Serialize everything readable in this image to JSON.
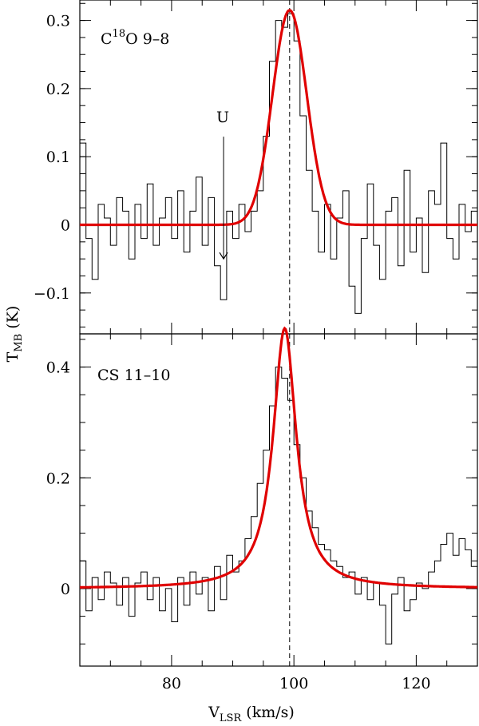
{
  "figure": {
    "xlabel_main": "V",
    "xlabel_sub": "LSR",
    "xlabel_unit": " (km/s)",
    "ylabel_main": "T",
    "ylabel_sub": "MB",
    "ylabel_unit": " (K)"
  },
  "colors": {
    "fit": "#e00000",
    "spectrum": "#000000"
  },
  "chart_data": [
    {
      "type": "line",
      "title": "",
      "label_main": "C",
      "label_sup": "18",
      "label_rest": "O 9–8",
      "annotation": {
        "text": "U",
        "x": 88.5,
        "y": 0.12,
        "arrow_to_y": -0.05
      },
      "xlim": [
        65,
        130
      ],
      "ylim": [
        -0.16,
        0.33
      ],
      "xticks_major": [
        80,
        100,
        120
      ],
      "xticks_minor": [
        70,
        75,
        85,
        90,
        95,
        105,
        110,
        115,
        125
      ],
      "yticks_major": [
        -0.1,
        0,
        0.1,
        0.2,
        0.3
      ],
      "ytick_labels": [
        "−0.1",
        "0",
        "0.1",
        "0.2",
        "0.3"
      ],
      "vline": 99.3,
      "series": [
        {
          "style": "histogram",
          "x": [
            65.5,
            66.5,
            67.5,
            68.5,
            69.5,
            70.5,
            71.5,
            72.5,
            73.5,
            74.5,
            75.5,
            76.5,
            77.5,
            78.5,
            79.5,
            80.5,
            81.5,
            82.5,
            83.5,
            84.5,
            85.5,
            86.5,
            87.5,
            88.5,
            89.5,
            90.5,
            91.5,
            92.5,
            93.5,
            94.5,
            95.5,
            96.5,
            97.5,
            98.5,
            99.5,
            100.5,
            101.5,
            102.5,
            103.5,
            104.5,
            105.5,
            106.5,
            107.5,
            108.5,
            109.5,
            110.5,
            111.5,
            112.5,
            113.5,
            114.5,
            115.5,
            116.5,
            117.5,
            118.5,
            119.5,
            120.5,
            121.5,
            122.5,
            123.5,
            124.5,
            125.5,
            126.5,
            127.5,
            128.5,
            129.5
          ],
          "y": [
            0.12,
            -0.02,
            -0.08,
            0.03,
            0.01,
            -0.03,
            0.04,
            0.02,
            -0.05,
            0.03,
            -0.02,
            0.06,
            -0.03,
            0.01,
            0.04,
            -0.02,
            0.05,
            -0.04,
            0.02,
            0.07,
            -0.03,
            0.04,
            -0.06,
            -0.11,
            0.02,
            -0.02,
            0.03,
            -0.01,
            0.02,
            0.05,
            0.13,
            0.24,
            0.3,
            0.29,
            0.31,
            0.27,
            0.16,
            0.08,
            0.02,
            -0.04,
            0.03,
            -0.05,
            0.01,
            0.05,
            -0.09,
            -0.13,
            -0.02,
            0.06,
            -0.03,
            -0.08,
            0.02,
            0.04,
            -0.06,
            0.08,
            -0.04,
            0.01,
            -0.07,
            0.05,
            0.03,
            0.12,
            -0.02,
            -0.05,
            0.03,
            -0.01,
            0.02
          ]
        },
        {
          "style": "fit",
          "model": "gaussian",
          "center": 99.3,
          "amplitude": 0.315,
          "fwhm": 6.6
        }
      ]
    },
    {
      "type": "line",
      "title": "",
      "label_main": "CS 11–10",
      "xlim": [
        65,
        130
      ],
      "ylim": [
        -0.14,
        0.46
      ],
      "xticks_major": [
        80,
        100,
        120
      ],
      "xticks_minor": [
        70,
        75,
        85,
        90,
        95,
        105,
        110,
        115,
        125
      ],
      "xtick_labels": [
        "80",
        "100",
        "120"
      ],
      "yticks_major": [
        0,
        0.2,
        0.4
      ],
      "ytick_labels": [
        "0",
        "0.2",
        "0.4"
      ],
      "vline": 99.3,
      "series": [
        {
          "style": "histogram",
          "x": [
            65.5,
            66.5,
            67.5,
            68.5,
            69.5,
            70.5,
            71.5,
            72.5,
            73.5,
            74.5,
            75.5,
            76.5,
            77.5,
            78.5,
            79.5,
            80.5,
            81.5,
            82.5,
            83.5,
            84.5,
            85.5,
            86.5,
            87.5,
            88.5,
            89.5,
            90.5,
            91.5,
            92.5,
            93.5,
            94.5,
            95.5,
            96.5,
            97.5,
            98.5,
            99.5,
            100.5,
            101.5,
            102.5,
            103.5,
            104.5,
            105.5,
            106.5,
            107.5,
            108.5,
            109.5,
            110.5,
            111.5,
            112.5,
            113.5,
            114.5,
            115.5,
            116.5,
            117.5,
            118.5,
            119.5,
            120.5,
            121.5,
            122.5,
            123.5,
            124.5,
            125.5,
            126.5,
            127.5,
            128.5,
            129.5
          ],
          "y": [
            0.05,
            -0.04,
            0.02,
            -0.02,
            0.03,
            0.01,
            -0.03,
            0.02,
            -0.05,
            0.01,
            0.03,
            -0.02,
            0.02,
            -0.04,
            0.0,
            -0.06,
            0.02,
            -0.03,
            0.03,
            -0.01,
            0.02,
            -0.04,
            0.04,
            -0.02,
            0.06,
            0.03,
            0.05,
            0.09,
            0.13,
            0.19,
            0.25,
            0.33,
            0.4,
            0.38,
            0.34,
            0.26,
            0.2,
            0.14,
            0.11,
            0.08,
            0.07,
            0.05,
            0.04,
            0.02,
            0.03,
            -0.01,
            0.02,
            -0.02,
            0.01,
            -0.03,
            -0.1,
            -0.01,
            0.02,
            -0.04,
            -0.02,
            0.01,
            0.0,
            0.03,
            0.05,
            0.08,
            0.1,
            0.06,
            0.09,
            0.07,
            0.04
          ]
        },
        {
          "style": "fit",
          "model": "lorentzian",
          "center": 98.5,
          "amplitude": 0.47,
          "fwhm": 4.6
        }
      ]
    }
  ]
}
